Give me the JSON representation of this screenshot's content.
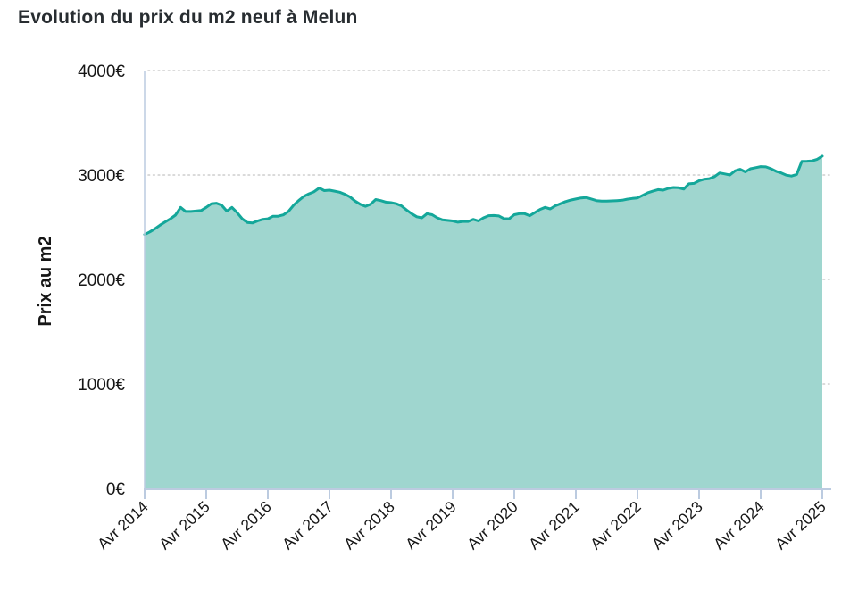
{
  "page_title": "Evolution du prix du m2 neuf à Melun",
  "chart_data": {
    "type": "area",
    "title": "Evolution du prix du m2 neuf à Melun",
    "xlabel": "",
    "ylabel": "Prix au m2",
    "unit": "€ par m2",
    "ylim": [
      0,
      4000
    ],
    "y_tick_labels": [
      "0€",
      "1000€",
      "2000€",
      "3000€",
      "4000€"
    ],
    "x_tick_labels": [
      "Avr 2014",
      "Avr 2015",
      "Avr 2016",
      "Avr 2017",
      "Avr 2018",
      "Avr 2019",
      "Avr 2020",
      "Avr 2021",
      "Avr 2022",
      "Avr 2023",
      "Avr 2024",
      "Avr 2025"
    ],
    "x_range": [
      "Avr 2014",
      "Avr 2025"
    ],
    "frequency": "monthly",
    "grid": "horizontal dotted",
    "legend": "none",
    "colors": {
      "line": "#14a79a",
      "fill": "#9fd6cf",
      "grid": "#cdcdcd",
      "axis": "#bccbe0",
      "text": "#161616",
      "title_text": "#282d31"
    },
    "values": [
      2430,
      2455,
      2485,
      2520,
      2550,
      2580,
      2615,
      2690,
      2650,
      2650,
      2655,
      2660,
      2690,
      2725,
      2730,
      2710,
      2655,
      2690,
      2640,
      2580,
      2545,
      2540,
      2560,
      2575,
      2580,
      2605,
      2605,
      2618,
      2650,
      2710,
      2755,
      2795,
      2820,
      2840,
      2875,
      2850,
      2855,
      2845,
      2835,
      2815,
      2790,
      2750,
      2720,
      2700,
      2720,
      2765,
      2755,
      2740,
      2735,
      2725,
      2705,
      2665,
      2630,
      2600,
      2590,
      2630,
      2620,
      2590,
      2570,
      2565,
      2560,
      2548,
      2555,
      2555,
      2575,
      2560,
      2590,
      2610,
      2612,
      2608,
      2582,
      2580,
      2620,
      2630,
      2630,
      2610,
      2640,
      2670,
      2690,
      2675,
      2705,
      2725,
      2745,
      2760,
      2770,
      2780,
      2785,
      2770,
      2755,
      2750,
      2750,
      2752,
      2755,
      2758,
      2768,
      2775,
      2780,
      2805,
      2830,
      2845,
      2860,
      2855,
      2872,
      2880,
      2878,
      2865,
      2915,
      2920,
      2945,
      2960,
      2965,
      2985,
      3020,
      3010,
      3000,
      3040,
      3055,
      3030,
      3060,
      3070,
      3080,
      3078,
      3060,
      3035,
      3020,
      2998,
      2990,
      3005,
      3130,
      3132,
      3135,
      3150,
      3180
    ]
  }
}
